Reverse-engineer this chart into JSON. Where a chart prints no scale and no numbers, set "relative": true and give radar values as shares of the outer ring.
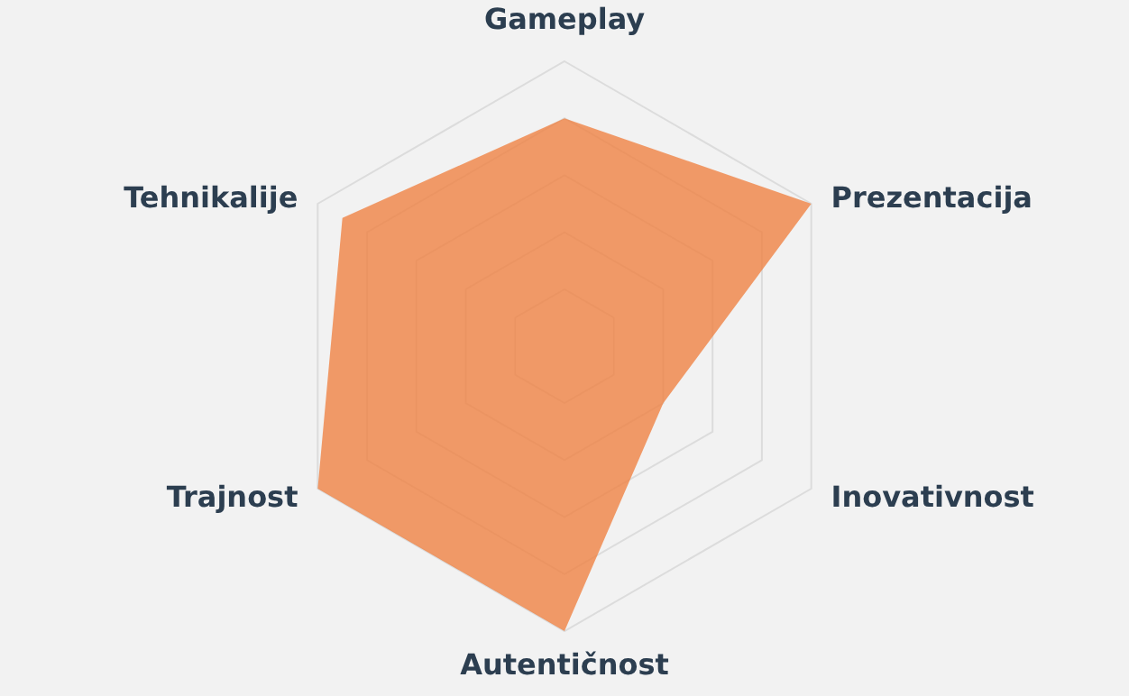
{
  "chart_data": {
    "type": "radar",
    "categories": [
      "Gameplay",
      "Prezentacija",
      "Inovativnost",
      "Autentičnost",
      "Trajnost",
      "Tehnikalije"
    ],
    "series": [
      {
        "color": "#f08040",
        "values": [
          0.8,
          1,
          0.4,
          1,
          1,
          0.9
        ]
      }
    ],
    "relative": true,
    "grid": true
  }
}
